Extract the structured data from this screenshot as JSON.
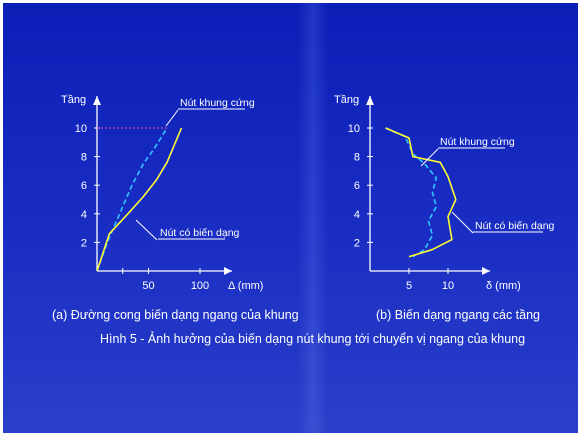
{
  "colors": {
    "background": "#1a2ec4",
    "axis": "#ffffff",
    "rigid": "#33c6ff",
    "flexible": "#ffff33",
    "leader_line": "#ffffff",
    "dotted_ref": "#c0409a"
  },
  "captions": {
    "left": "(a) Đường cong biến dạng ngang của khung",
    "right": "(b) Biến dạng ngang các tầng",
    "figure": "Hình 5 - Ảnh hưởng của biến dạng nút khung tới chuyển vị ngang của khung"
  },
  "chart_data": [
    {
      "type": "line",
      "ylabel": "Tầng",
      "xlabel": "Δ (mm)",
      "xlim": [
        0,
        130
      ],
      "ylim": [
        0,
        11
      ],
      "xticks": [
        50,
        100
      ],
      "yticks": [
        2,
        4,
        6,
        8,
        10
      ],
      "grid": false,
      "series": [
        {
          "name": "Nút khung cứng",
          "style": "dashed",
          "color": "#33c6ff",
          "x": [
            0,
            10,
            22,
            34,
            45,
            55,
            62,
            68
          ],
          "y": [
            0,
            2,
            4,
            6,
            7.5,
            8.5,
            9.3,
            10
          ]
        },
        {
          "name": "Nút có biến dạng",
          "style": "solid",
          "color": "#ffff33",
          "x": [
            0,
            12,
            30,
            45,
            58,
            68,
            75,
            82
          ],
          "y": [
            0,
            2.6,
            4,
            5.2,
            6.4,
            7.6,
            8.8,
            10
          ]
        }
      ]
    },
    {
      "type": "line",
      "ylabel": "Tầng",
      "xlabel": "δ (mm)",
      "xlim": [
        0,
        14
      ],
      "ylim": [
        0,
        11
      ],
      "xticks": [
        5,
        10
      ],
      "yticks": [
        2,
        4,
        6,
        8,
        10
      ],
      "grid": false,
      "series": [
        {
          "name": "Nút khung cứng",
          "style": "dashed",
          "color": "#33c6ff",
          "x": [
            2,
            4.5,
            5.5,
            7,
            8.5,
            8,
            8.5,
            7.5,
            8,
            7,
            5.5
          ],
          "y": [
            10,
            9.4,
            8.2,
            7.5,
            6.5,
            5.5,
            4.5,
            3.5,
            2.5,
            1.5,
            1
          ]
        },
        {
          "name": "Nút có biến dạng",
          "style": "solid",
          "color": "#ffff33",
          "x": [
            2,
            5,
            5.5,
            9,
            10,
            11,
            10,
            10.5,
            8,
            5
          ],
          "y": [
            10,
            9.3,
            8,
            7.6,
            6.6,
            5,
            3.8,
            2.2,
            1.5,
            1
          ]
        }
      ]
    }
  ]
}
